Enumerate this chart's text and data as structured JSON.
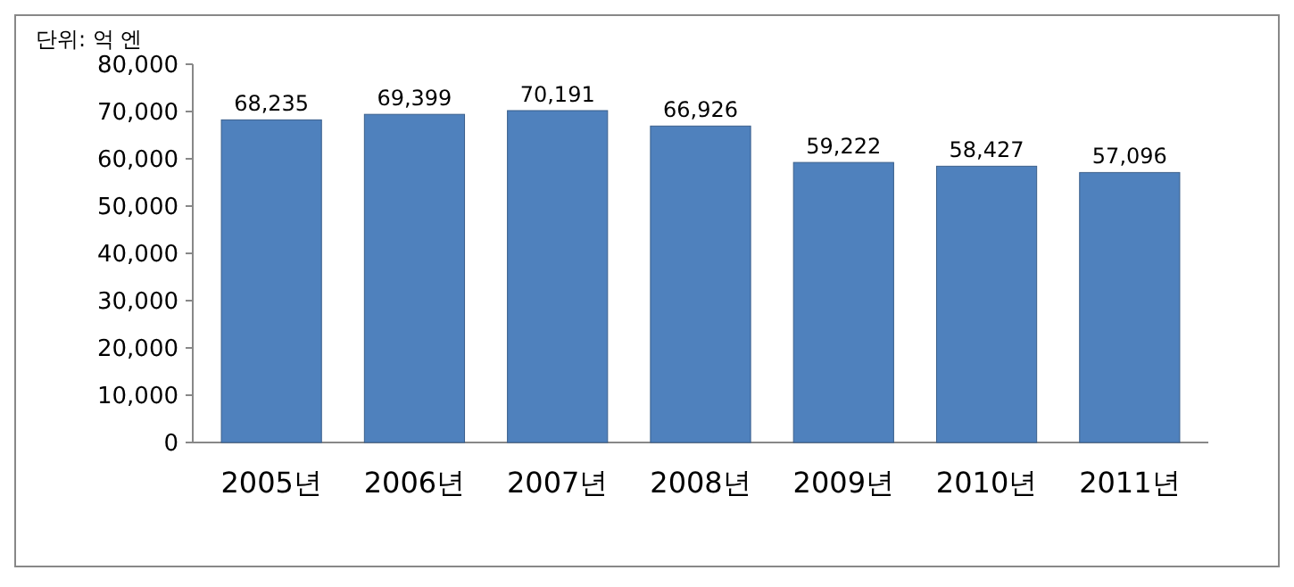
{
  "chart_data": {
    "type": "bar",
    "ylabel": "단위: 억 엔",
    "categories": [
      "2005년",
      "2006년",
      "2007년",
      "2008년",
      "2009년",
      "2010년",
      "2011년"
    ],
    "values": [
      68235,
      69399,
      70191,
      66926,
      59222,
      58427,
      57096
    ],
    "value_labels": [
      "68,235",
      "69,399",
      "70,191",
      "66,926",
      "59,222",
      "58,427",
      "57,096"
    ],
    "color": "#4f81bd",
    "grid": false,
    "ylim": [
      0,
      80000
    ],
    "yticks": [
      {
        "value": 0,
        "label": "0"
      },
      {
        "value": 10000,
        "label": "10,000"
      },
      {
        "value": 20000,
        "label": "20,000"
      },
      {
        "value": 30000,
        "label": "30,000"
      },
      {
        "value": 40000,
        "label": "40,000"
      },
      {
        "value": 50000,
        "label": "50,000"
      },
      {
        "value": 60000,
        "label": "60,000"
      },
      {
        "value": 70000,
        "label": "70,000"
      },
      {
        "value": 80000,
        "label": "80,000"
      }
    ]
  }
}
